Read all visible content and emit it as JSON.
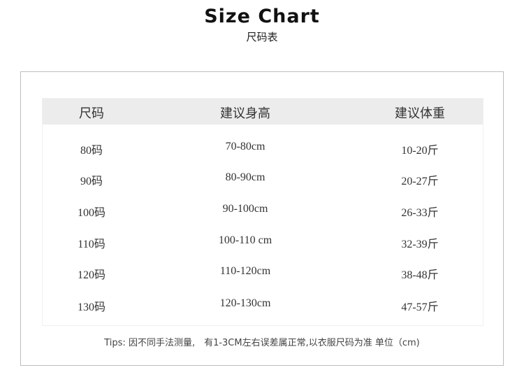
{
  "title": "Size Chart",
  "subtitle": "尺码表",
  "headers": [
    "尺码",
    "建议身高",
    "建议体重"
  ],
  "rows": [
    [
      "80码",
      "70-80cm",
      "10-20斤"
    ],
    [
      "90码",
      "80-90cm",
      "20-27斤"
    ],
    [
      "100码",
      "90-100cm",
      "26-33斤"
    ],
    [
      "110码",
      "100-110 cm",
      "32-39斤"
    ],
    [
      "120码",
      "110-120cm",
      "38-48斤"
    ],
    [
      "130码",
      "120-130cm",
      "47-57斤"
    ]
  ],
  "tips": "Tips: 因不同手法测量,　有1-3CM左右误差属正常,以衣服尺码为准 单位（cm)"
}
